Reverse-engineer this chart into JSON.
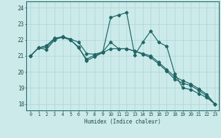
{
  "xlabel": "Humidex (Indice chaleur)",
  "bg_color": "#cceaea",
  "grid_major_color": "#aad4d4",
  "grid_minor_color": "#ddeaea",
  "line_color": "#226666",
  "xlim": [
    -0.5,
    23.5
  ],
  "ylim": [
    17.6,
    24.4
  ],
  "xtick_labels": [
    "0",
    "1",
    "2",
    "3",
    "4",
    "5",
    "6",
    "7",
    "8",
    "9",
    "10",
    "11",
    "12",
    "13",
    "14",
    "15",
    "16",
    "17",
    "18",
    "19",
    "20",
    "21",
    "22",
    "23"
  ],
  "yticks": [
    18,
    19,
    20,
    21,
    22,
    23,
    24
  ],
  "series1_x": [
    0,
    1,
    2,
    3,
    4,
    5,
    6,
    7,
    8,
    9,
    10,
    11,
    12,
    13,
    14,
    15,
    16,
    17,
    18,
    19,
    20,
    21,
    22,
    23
  ],
  "series1_y": [
    21.0,
    21.5,
    21.4,
    22.0,
    22.2,
    22.0,
    21.5,
    20.8,
    21.05,
    21.2,
    23.4,
    23.55,
    23.7,
    21.05,
    21.85,
    22.55,
    21.85,
    21.6,
    19.9,
    19.0,
    18.9,
    18.65,
    18.4,
    18.0
  ],
  "series2_x": [
    0,
    1,
    2,
    3,
    4,
    5,
    6,
    7,
    8,
    9,
    10,
    11,
    12,
    13,
    14,
    15,
    16,
    17,
    18,
    19,
    20,
    21,
    22,
    23
  ],
  "series2_y": [
    21.0,
    21.5,
    21.65,
    22.1,
    22.2,
    22.05,
    21.85,
    21.15,
    21.1,
    21.25,
    21.85,
    21.45,
    21.45,
    21.3,
    21.15,
    21.0,
    20.6,
    20.15,
    19.7,
    19.45,
    19.25,
    18.95,
    18.6,
    18.0
  ],
  "series3_x": [
    0,
    1,
    2,
    3,
    4,
    5,
    6,
    7,
    8,
    9,
    10,
    11,
    12,
    13,
    14,
    15,
    16,
    17,
    18,
    19,
    20,
    21,
    22,
    23
  ],
  "series3_y": [
    21.0,
    21.5,
    21.55,
    22.05,
    22.15,
    22.0,
    21.55,
    20.7,
    20.95,
    21.2,
    21.45,
    21.45,
    21.45,
    21.3,
    21.1,
    20.9,
    20.5,
    20.05,
    19.55,
    19.3,
    19.15,
    18.85,
    18.5,
    18.0
  ]
}
